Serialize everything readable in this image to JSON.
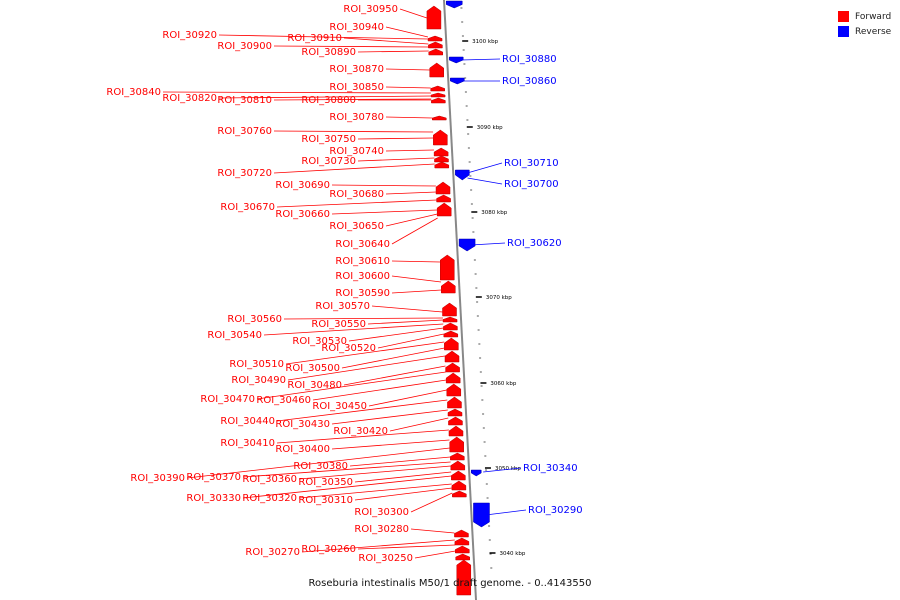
{
  "caption": "Roseburia intestinalis M50/1 draft genome. - 0..4143550",
  "legend": [
    {
      "label": "Forward",
      "color": "#ff0000"
    },
    {
      "label": "Reverse",
      "color": "#0000ff"
    }
  ],
  "scale_ticks": [
    "3100 kbp",
    "3090 kbp",
    "3080 kbp",
    "3070 kbp",
    "3060 kbp",
    "3050 kbp",
    "3040 kbp"
  ],
  "forward_labels": [
    "ROI_30950",
    "ROI_30940",
    "ROI_30920",
    "ROI_30910",
    "ROI_30900",
    "ROI_30890",
    "ROI_30870",
    "ROI_30850",
    "ROI_30840",
    "ROI_30820",
    "ROI_30810",
    "ROI_30800",
    "ROI_30780",
    "ROI_30760",
    "ROI_30750",
    "ROI_30740",
    "ROI_30730",
    "ROI_30720",
    "ROI_30690",
    "ROI_30680",
    "ROI_30670",
    "ROI_30660",
    "ROI_30650",
    "ROI_30640",
    "ROI_30610",
    "ROI_30600",
    "ROI_30590",
    "ROI_30570",
    "ROI_30560",
    "ROI_30550",
    "ROI_30540",
    "ROI_30530",
    "ROI_30520",
    "ROI_30510",
    "ROI_30500",
    "ROI_30490",
    "ROI_30480",
    "ROI_30470",
    "ROI_30460",
    "ROI_30450",
    "ROI_30440",
    "ROI_30430",
    "ROI_30420",
    "ROI_30410",
    "ROI_30400",
    "ROI_30390",
    "ROI_30380",
    "ROI_30370",
    "ROI_30360",
    "ROI_30350",
    "ROI_30330",
    "ROI_30320",
    "ROI_30310",
    "ROI_30300",
    "ROI_30280",
    "ROI_30270",
    "ROI_30260",
    "ROI_30250"
  ],
  "reverse_labels": [
    "ROI_30880",
    "ROI_30860",
    "ROI_30710",
    "ROI_30700",
    "ROI_30620",
    "ROI_30340",
    "ROI_30290"
  ]
}
